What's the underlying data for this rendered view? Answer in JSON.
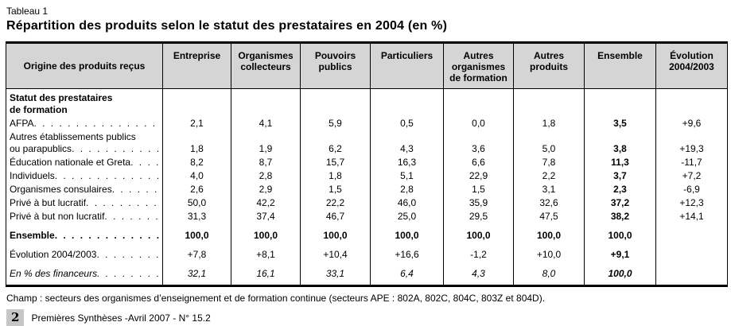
{
  "header": {
    "table_label": "Tableau 1",
    "title": "Répartition des produits selon le statut des prestataires en 2004 (en %)"
  },
  "table": {
    "corner_header": "Origine des produits reçus",
    "columns": [
      "Entreprise",
      "Organismes collecteurs",
      "Pouvoirs publics",
      "Particuliers",
      "Autres organismes de formation",
      "Autres produits",
      "Ensemble",
      "Évolution 2004/2003"
    ],
    "rows": [
      {
        "type": "section",
        "lines": [
          "Statut des prestataires",
          "de formation"
        ]
      },
      {
        "type": "data",
        "label": "AFPA",
        "values": [
          "2,1",
          "4,1",
          "5,9",
          "0,5",
          "0,0",
          "1,8",
          "3,5",
          "+9,6"
        ]
      },
      {
        "type": "data",
        "lines": [
          "Autres établissements publics",
          "ou parapublics"
        ],
        "values": [
          "1,8",
          "1,9",
          "6,2",
          "4,3",
          "3,6",
          "5,0",
          "3,8",
          "+19,3"
        ]
      },
      {
        "type": "data",
        "label": "Éducation nationale et Greta",
        "values": [
          "8,2",
          "8,7",
          "15,7",
          "16,3",
          "6,6",
          "7,8",
          "11,3",
          "-11,7"
        ]
      },
      {
        "type": "data",
        "label": "Individuels",
        "values": [
          "4,0",
          "2,8",
          "1,8",
          "5,1",
          "22,9",
          "2,2",
          "3,7",
          "+7,2"
        ]
      },
      {
        "type": "data",
        "label": "Organismes consulaires",
        "values": [
          "2,6",
          "2,9",
          "1,5",
          "2,8",
          "1,5",
          "3,1",
          "2,3",
          "-6,9"
        ]
      },
      {
        "type": "data",
        "label": "Privé à but lucratif",
        "values": [
          "50,0",
          "42,2",
          "22,2",
          "46,0",
          "35,9",
          "32,6",
          "37,2",
          "+12,3"
        ]
      },
      {
        "type": "data",
        "label": "Privé à but non lucratif",
        "values": [
          "31,3",
          "37,4",
          "46,7",
          "25,0",
          "29,5",
          "47,5",
          "38,2",
          "+14,1"
        ]
      },
      {
        "type": "data",
        "style": "bold",
        "label": "Ensemble",
        "values": [
          "100,0",
          "100,0",
          "100,0",
          "100,0",
          "100,0",
          "100,0",
          "100,0",
          ""
        ]
      },
      {
        "type": "data",
        "label": "Évolution 2004/2003",
        "values": [
          "+7,8",
          "+8,1",
          "+10,4",
          "+16,6",
          "-1,2",
          "+10,0",
          "+9,1",
          ""
        ]
      },
      {
        "type": "data",
        "style": "italic",
        "label": "En % des financeurs",
        "values": [
          "32,1",
          "16,1",
          "33,1",
          "6,4",
          "4,3",
          "8,0",
          "100,0",
          ""
        ]
      }
    ]
  },
  "footnote": "Champ : secteurs des organismes d’enseignement et de formation continue (secteurs APE : 802A, 802C, 804C, 803Z et 804D).",
  "footer": {
    "page_number": "2",
    "publication": "Premières Synthèses -Avril 2007 - N° 15.2"
  }
}
